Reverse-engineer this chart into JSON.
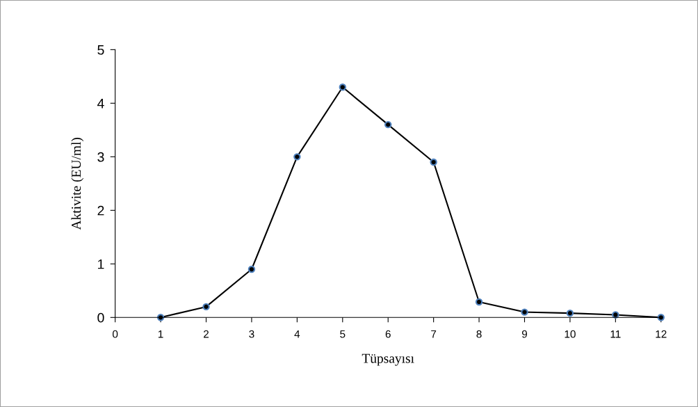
{
  "chart_data": {
    "type": "line",
    "xlabel": "Tüpsayısı",
    "ylabel": "Aktivite (EU/ml)",
    "x": [
      1,
      2,
      3,
      4,
      5,
      6,
      7,
      8,
      9,
      10,
      11,
      12
    ],
    "series": [
      {
        "color": "#000000",
        "values": [
          0,
          0.2,
          0.9,
          3.0,
          4.3,
          3.6,
          2.9,
          0.29,
          0.1,
          0.08,
          0.05,
          0
        ]
      }
    ],
    "xlim": [
      0,
      12
    ],
    "xticks": [
      0,
      1,
      2,
      3,
      4,
      5,
      6,
      7,
      8,
      9,
      10,
      11,
      12
    ],
    "ylim": [
      0,
      5
    ],
    "yticks": [
      0,
      1,
      2,
      3,
      4,
      5
    ],
    "grid": false,
    "marker": "circle",
    "line_style": "solid"
  }
}
